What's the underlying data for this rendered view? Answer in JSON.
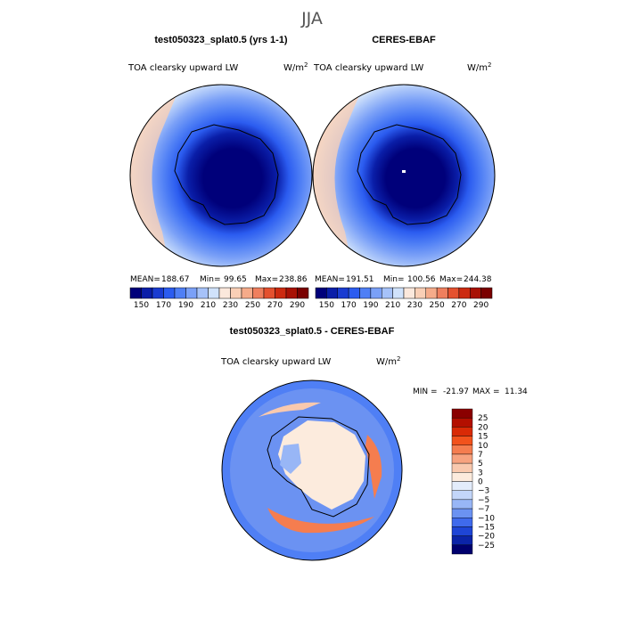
{
  "page_title": "JJA",
  "chart_data": [
    {
      "type": "heatmap",
      "projection": "south-polar-stereographic",
      "title": "test050323_splat0.5 (yrs 1-1)",
      "field_label": "TOA clearsky upward LW",
      "units_main": "W/m",
      "units_exp": "2",
      "stats": {
        "mean_label": "MEAN=",
        "mean": "188.67",
        "min_label": "Min=",
        "min": "99.65",
        "max_label": "Max=",
        "max": "238.86"
      },
      "colorbar": {
        "levels": [
          140,
          150,
          160,
          170,
          180,
          190,
          200,
          210,
          220,
          230,
          240,
          250,
          260,
          270,
          280,
          290
        ],
        "tick_labels": [
          "150",
          "170",
          "190",
          "210",
          "230",
          "250",
          "270",
          "290"
        ],
        "colors": [
          "#00007a",
          "#0a1ea8",
          "#1a3cd1",
          "#2b5cf0",
          "#4f7ff5",
          "#7aa0f7",
          "#a6c2f9",
          "#d0e2fb",
          "#fbe8dc",
          "#f9cfb6",
          "#f5ab8a",
          "#ef7f5e",
          "#e4512f",
          "#cc2a10",
          "#a81104",
          "#7a0000"
        ]
      }
    },
    {
      "type": "heatmap",
      "projection": "south-polar-stereographic",
      "title": "CERES-EBAF",
      "field_label": "TOA clearsky upward LW",
      "units_main": "W/m",
      "units_exp": "2",
      "stats": {
        "mean_label": "MEAN=",
        "mean": "191.51",
        "min_label": "Min=",
        "min": "100.56",
        "max_label": "Max=",
        "max": "244.38"
      },
      "colorbar": {
        "levels": [
          140,
          150,
          160,
          170,
          180,
          190,
          200,
          210,
          220,
          230,
          240,
          250,
          260,
          270,
          280,
          290
        ],
        "tick_labels": [
          "150",
          "170",
          "190",
          "210",
          "230",
          "250",
          "270",
          "290"
        ],
        "colors": [
          "#00007a",
          "#0a1ea8",
          "#1a3cd1",
          "#2b5cf0",
          "#4f7ff5",
          "#7aa0f7",
          "#a6c2f9",
          "#d0e2fb",
          "#fbe8dc",
          "#f9cfb6",
          "#f5ab8a",
          "#ef7f5e",
          "#e4512f",
          "#cc2a10",
          "#a81104",
          "#7a0000"
        ]
      }
    },
    {
      "type": "heatmap",
      "projection": "south-polar-stereographic",
      "title": "test050323_splat0.5 - CERES-EBAF",
      "field_label": "TOA clearsky upward LW",
      "units_main": "W/m",
      "units_exp": "2",
      "stats": {
        "min_label": "MIN =",
        "min": "-21.97",
        "max_label": "MAX =",
        "max": "11.34"
      },
      "colorbar": {
        "levels": [
          25,
          20,
          15,
          10,
          7,
          5,
          3,
          0,
          -3,
          -5,
          -7,
          -10,
          -15,
          -20,
          -25
        ],
        "tick_labels": [
          "25",
          "20",
          "15",
          "10",
          "7",
          "5",
          "3",
          "0",
          "−3",
          "−5",
          "−7",
          "−10",
          "−15",
          "−20",
          "−25"
        ],
        "colors": [
          "#8a0000",
          "#b30f00",
          "#d92a06",
          "#f2521c",
          "#f57d4f",
          "#f7a37f",
          "#f9c9ae",
          "#fcebdd",
          "#e3ecfb",
          "#c3d6f9",
          "#98b6f6",
          "#6b92f2",
          "#3f6aec",
          "#1e45d6",
          "#0b24a8",
          "#00006e"
        ]
      }
    }
  ]
}
